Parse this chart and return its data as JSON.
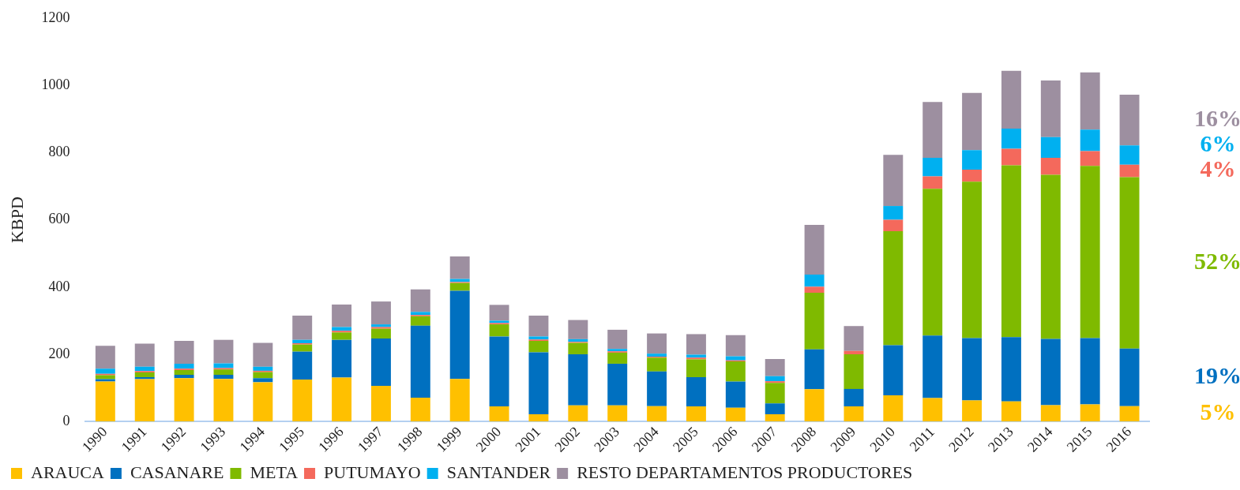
{
  "chart_data": {
    "type": "bar",
    "stacked": true,
    "ylabel": "KBPD",
    "categories": [
      "1990",
      "1991",
      "1992",
      "1993",
      "1994",
      "1995",
      "1996",
      "1997",
      "1998",
      "1999",
      "2000",
      "2001",
      "2002",
      "2003",
      "2004",
      "2005",
      "2006",
      "2007",
      "2008",
      "2009",
      "2010",
      "2011",
      "2012",
      "2013",
      "2014",
      "2015",
      "2016"
    ],
    "series": [
      {
        "name": "ARAUCA",
        "color": "#ffc000",
        "values": [
          119,
          126,
          129,
          127,
          117,
          125,
          131,
          106,
          71,
          127,
          45,
          22,
          48,
          48,
          46,
          45,
          41,
          22,
          96,
          45,
          78,
          70,
          63,
          60,
          49,
          51,
          46
        ]
      },
      {
        "name": "CASANARE",
        "color": "#0070c0",
        "values": [
          7,
          6,
          10,
          12,
          12,
          83,
          112,
          141,
          214,
          262,
          208,
          184,
          152,
          124,
          103,
          87,
          78,
          32,
          119,
          52,
          149,
          186,
          185,
          191,
          197,
          197,
          171
        ]
      },
      {
        "name": "META",
        "color": "#7fba00",
        "values": [
          12,
          14,
          14,
          16,
          18,
          21,
          22,
          29,
          28,
          23,
          36,
          34,
          34,
          33,
          41,
          53,
          60,
          61,
          168,
          103,
          339,
          436,
          465,
          511,
          488,
          512,
          510
        ]
      },
      {
        "name": "PUTUMAYO",
        "color": "#f4695c",
        "values": [
          4,
          4,
          4,
          4,
          4,
          4,
          5,
          5,
          4,
          3,
          4,
          4,
          3,
          4,
          3,
          5,
          3,
          5,
          18,
          10,
          34,
          37,
          36,
          49,
          50,
          44,
          37
        ]
      },
      {
        "name": "SANTANDER",
        "color": "#00b0f0",
        "values": [
          15,
          13,
          15,
          14,
          12,
          10,
          11,
          8,
          9,
          9,
          7,
          9,
          8,
          7,
          9,
          9,
          12,
          15,
          36,
          0,
          41,
          55,
          58,
          60,
          62,
          64,
          57
        ]
      },
      {
        "name": "RESTO DEPARTAMENTOS PRODUCTORES",
        "color": "#9d8fa0",
        "values": [
          68,
          69,
          68,
          70,
          71,
          72,
          67,
          68,
          67,
          67,
          47,
          62,
          57,
          57,
          60,
          61,
          63,
          51,
          148,
          74,
          152,
          166,
          170,
          172,
          168,
          170,
          151
        ]
      }
    ],
    "ylim": [
      0,
      1200
    ],
    "yticks": [
      0,
      200,
      400,
      600,
      800,
      1000,
      1200
    ],
    "grid": false,
    "legend": "bottom",
    "annotations": [
      "5%",
      "19%",
      "52%",
      "4%",
      "6%",
      "16%"
    ]
  }
}
